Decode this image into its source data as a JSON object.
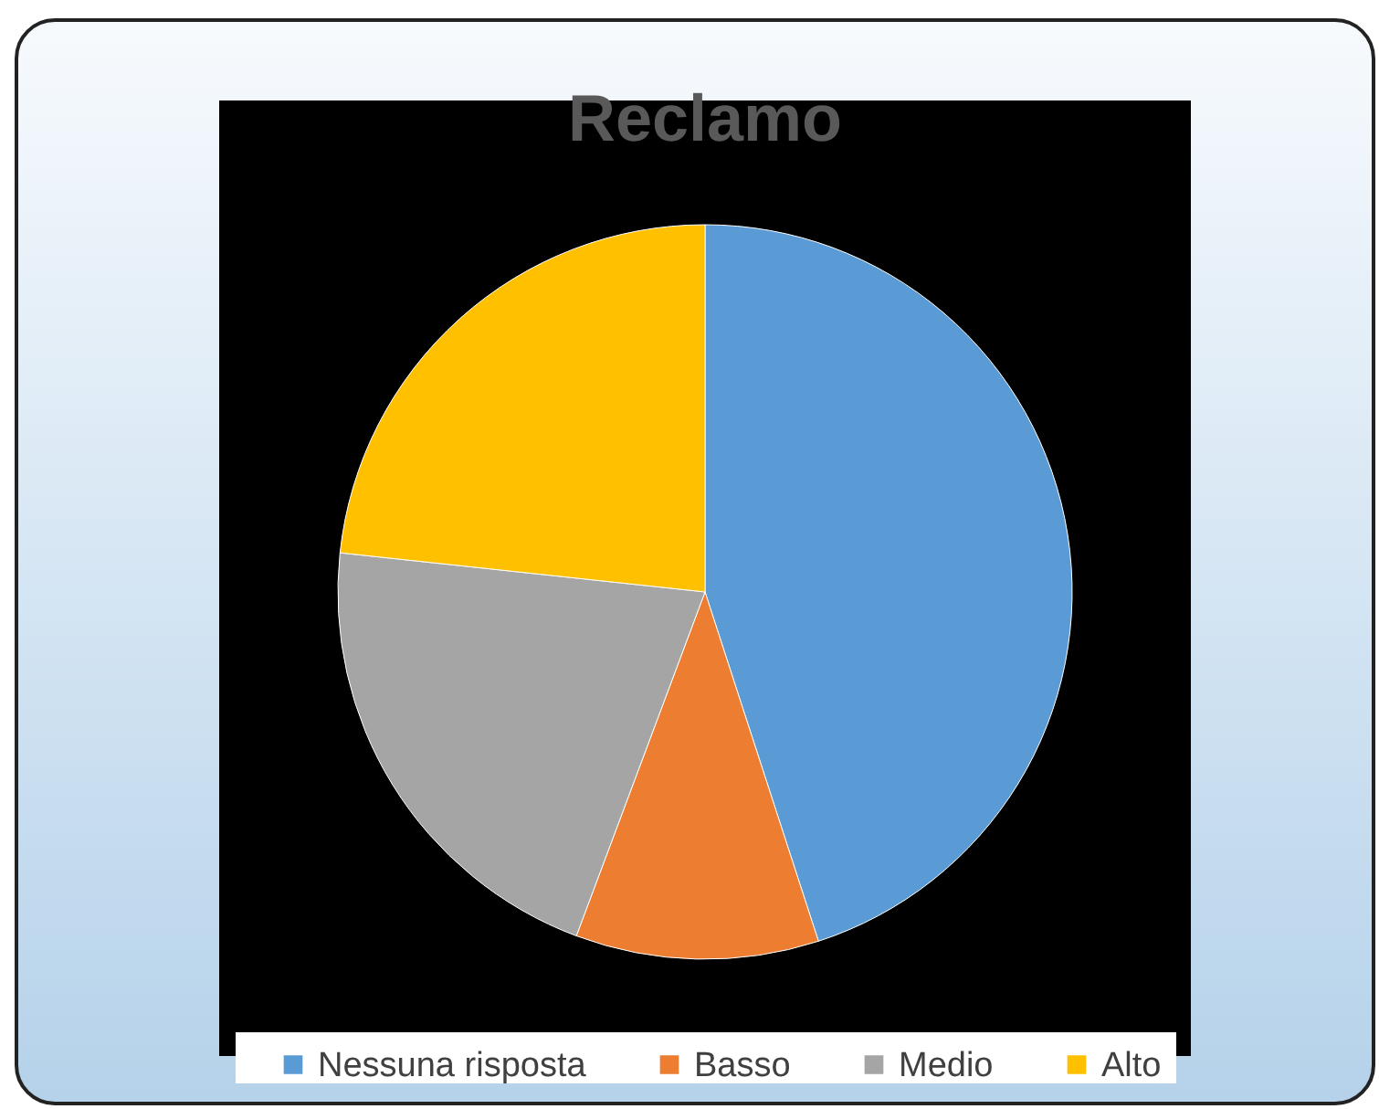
{
  "chart_data": {
    "type": "pie",
    "title": "Reclamo",
    "categories": [
      "Nessuna risposta",
      "Basso",
      "Medio",
      "Alto"
    ],
    "values": [
      45,
      10.7,
      21,
      23.3
    ],
    "colors": [
      "#5b9bd5",
      "#ed7d31",
      "#a5a5a5",
      "#ffc000"
    ],
    "legend": "bottom"
  }
}
